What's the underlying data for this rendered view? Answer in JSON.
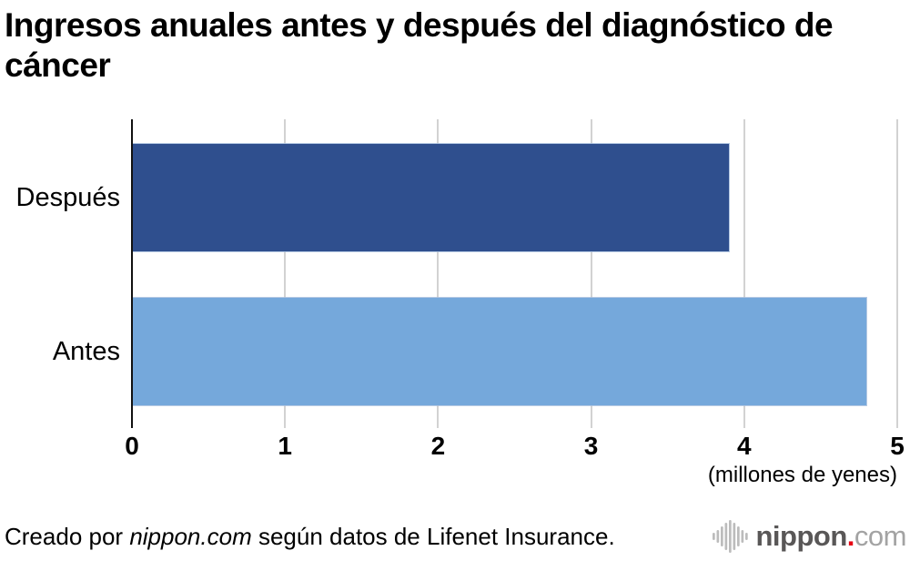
{
  "title": "Ingresos anuales antes y después del diagnóstico de cáncer",
  "chart_data": {
    "type": "bar",
    "orientation": "horizontal",
    "title": "Ingresos anuales antes y después del diagnóstico de cáncer",
    "categories": [
      "Después",
      "Antes"
    ],
    "values": [
      3.9,
      4.8
    ],
    "bar_colors": [
      "#2F4F8E",
      "#75A8DB"
    ],
    "xlabel": "(millones de yenes)",
    "xlim": [
      0,
      5
    ],
    "xticks": [
      0,
      1,
      2,
      3,
      4,
      5
    ],
    "gridlines": true,
    "gridline_color": "#d2d2d2",
    "axis_color": "#111111",
    "legend": "none"
  },
  "footer": {
    "credit_prefix": "Creado por ",
    "credit_source": "nippon.com",
    "credit_suffix": " según datos de Lifenet Insurance.",
    "logo": {
      "icon": "audio-waveform-icon",
      "name": "nippon",
      "dot": ".",
      "tld": "com",
      "name_color": "#595757",
      "tld_color": "#a3a3a3",
      "dot_color": "#e60012",
      "wave_color": "#bcbcbc"
    }
  }
}
